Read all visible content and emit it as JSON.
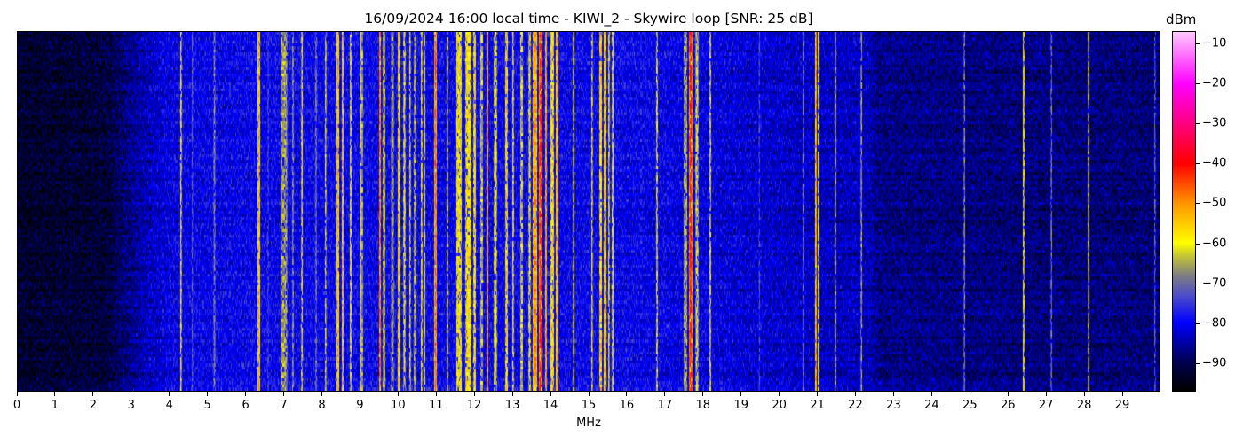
{
  "chart_data": {
    "type": "heatmap",
    "title": "16/09/2024 16:00 local time - KIWI_2 - Skywire loop [SNR: 25 dB]",
    "xlabel": "MHz",
    "ylabel": "",
    "xlim": [
      0,
      30
    ],
    "x_ticks": [
      0,
      1,
      2,
      3,
      4,
      5,
      6,
      7,
      8,
      9,
      10,
      11,
      12,
      13,
      14,
      15,
      16,
      17,
      18,
      19,
      20,
      21,
      22,
      23,
      24,
      25,
      26,
      27,
      28,
      29
    ],
    "colorbar": {
      "label": "dBm",
      "range": [
        -97,
        -7
      ],
      "ticks": [
        -10,
        -20,
        -30,
        -40,
        -50,
        -60,
        -70,
        -80,
        -90
      ],
      "tick_labels": [
        "−10",
        "−20",
        "−30",
        "−40",
        "−50",
        "−60",
        "−70",
        "−80",
        "−90"
      ],
      "colormap": [
        [
          -97,
          "#000000"
        ],
        [
          -90,
          "#000050"
        ],
        [
          -80,
          "#0000ff"
        ],
        [
          -73,
          "#5050c8"
        ],
        [
          -68,
          "#808080"
        ],
        [
          -63,
          "#c8c832"
        ],
        [
          -60,
          "#ffff00"
        ],
        [
          -50,
          "#ff9600"
        ],
        [
          -40,
          "#ff0000"
        ],
        [
          -30,
          "#ff0080"
        ],
        [
          -20,
          "#ff00ff"
        ],
        [
          -7,
          "#ffc8ff"
        ]
      ]
    },
    "noise_floor_dBm": [
      [
        0,
        -93
      ],
      [
        2.3,
        -92
      ],
      [
        3.2,
        -85
      ],
      [
        4,
        -81
      ],
      [
        6,
        -80
      ],
      [
        16,
        -80
      ],
      [
        19,
        -82
      ],
      [
        22.4,
        -84
      ],
      [
        22.6,
        -87
      ],
      [
        30,
        -88
      ]
    ],
    "signals": [
      {
        "mhz": 4.29,
        "dbm": -61,
        "width": 0.02
      },
      {
        "mhz": 4.6,
        "dbm": -72,
        "width": 0.02
      },
      {
        "mhz": 5.19,
        "dbm": -68,
        "width": 0.03
      },
      {
        "mhz": 6.34,
        "dbm": -52,
        "width": 0.03
      },
      {
        "mhz": 6.6,
        "dbm": -70,
        "width": 0.02
      },
      {
        "mhz": 7.0,
        "dbm": -66,
        "width": 0.15
      },
      {
        "mhz": 7.25,
        "dbm": -63,
        "width": 0.02
      },
      {
        "mhz": 7.48,
        "dbm": -60,
        "width": 0.02
      },
      {
        "mhz": 7.85,
        "dbm": -65,
        "width": 0.02
      },
      {
        "mhz": 8.1,
        "dbm": -62,
        "width": 0.02
      },
      {
        "mhz": 8.41,
        "dbm": -52,
        "width": 0.03
      },
      {
        "mhz": 8.55,
        "dbm": -54,
        "width": 0.03
      },
      {
        "mhz": 8.75,
        "dbm": -62,
        "width": 0.02
      },
      {
        "mhz": 9.04,
        "dbm": -60,
        "width": 0.02
      },
      {
        "mhz": 9.53,
        "dbm": -48,
        "width": 0.04
      },
      {
        "mhz": 9.64,
        "dbm": -60,
        "width": 0.04
      },
      {
        "mhz": 9.85,
        "dbm": -66,
        "width": 0.05
      },
      {
        "mhz": 10.04,
        "dbm": -54,
        "width": 0.04
      },
      {
        "mhz": 10.16,
        "dbm": -60,
        "width": 0.03
      },
      {
        "mhz": 10.32,
        "dbm": -62,
        "width": 0.02
      },
      {
        "mhz": 10.45,
        "dbm": -66,
        "width": 0.03
      },
      {
        "mhz": 10.62,
        "dbm": -60,
        "width": 0.02
      },
      {
        "mhz": 10.71,
        "dbm": -62,
        "width": 0.02
      },
      {
        "mhz": 10.99,
        "dbm": -46,
        "width": 0.03
      },
      {
        "mhz": 11.3,
        "dbm": -66,
        "width": 0.03
      },
      {
        "mhz": 11.6,
        "dbm": -60,
        "width": 0.15
      },
      {
        "mhz": 11.85,
        "dbm": -58,
        "width": 0.12
      },
      {
        "mhz": 12.02,
        "dbm": -58,
        "width": 0.04
      },
      {
        "mhz": 12.2,
        "dbm": -64,
        "width": 0.04
      },
      {
        "mhz": 12.35,
        "dbm": -50,
        "width": 0.03
      },
      {
        "mhz": 12.56,
        "dbm": -60,
        "width": 0.03
      },
      {
        "mhz": 12.86,
        "dbm": -56,
        "width": 0.04
      },
      {
        "mhz": 13.02,
        "dbm": -60,
        "width": 0.03
      },
      {
        "mhz": 13.25,
        "dbm": -64,
        "width": 0.04
      },
      {
        "mhz": 13.46,
        "dbm": -60,
        "width": 0.03
      },
      {
        "mhz": 13.6,
        "dbm": -50,
        "width": 0.05
      },
      {
        "mhz": 13.76,
        "dbm": -43,
        "width": 0.08
      },
      {
        "mhz": 13.9,
        "dbm": -52,
        "width": 0.04
      },
      {
        "mhz": 14.05,
        "dbm": -56,
        "width": 0.05
      },
      {
        "mhz": 14.2,
        "dbm": -52,
        "width": 0.05
      },
      {
        "mhz": 14.63,
        "dbm": -62,
        "width": 0.02
      },
      {
        "mhz": 15.1,
        "dbm": -62,
        "width": 0.02
      },
      {
        "mhz": 15.33,
        "dbm": -56,
        "width": 0.03
      },
      {
        "mhz": 15.44,
        "dbm": -52,
        "width": 0.03
      },
      {
        "mhz": 15.54,
        "dbm": -60,
        "width": 0.02
      },
      {
        "mhz": 15.65,
        "dbm": -58,
        "width": 0.02
      },
      {
        "mhz": 16.8,
        "dbm": -64,
        "width": 0.02
      },
      {
        "mhz": 17.55,
        "dbm": -66,
        "width": 0.08
      },
      {
        "mhz": 17.7,
        "dbm": -42,
        "width": 0.06
      },
      {
        "mhz": 17.85,
        "dbm": -62,
        "width": 0.06
      },
      {
        "mhz": 18.2,
        "dbm": -64,
        "width": 0.02
      },
      {
        "mhz": 19.5,
        "dbm": -74,
        "width": 0.02
      },
      {
        "mhz": 20.64,
        "dbm": -70,
        "width": 0.02
      },
      {
        "mhz": 20.98,
        "dbm": -50,
        "width": 0.03
      },
      {
        "mhz": 21.05,
        "dbm": -60,
        "width": 0.03
      },
      {
        "mhz": 21.5,
        "dbm": -68,
        "width": 0.03
      },
      {
        "mhz": 22.18,
        "dbm": -66,
        "width": 0.02
      },
      {
        "mhz": 24.88,
        "dbm": -68,
        "width": 0.02
      },
      {
        "mhz": 26.44,
        "dbm": -58,
        "width": 0.02
      },
      {
        "mhz": 27.18,
        "dbm": -70,
        "width": 0.02
      },
      {
        "mhz": 28.16,
        "dbm": -62,
        "width": 0.01
      },
      {
        "mhz": 29.9,
        "dbm": -72,
        "width": 0.02
      }
    ]
  }
}
